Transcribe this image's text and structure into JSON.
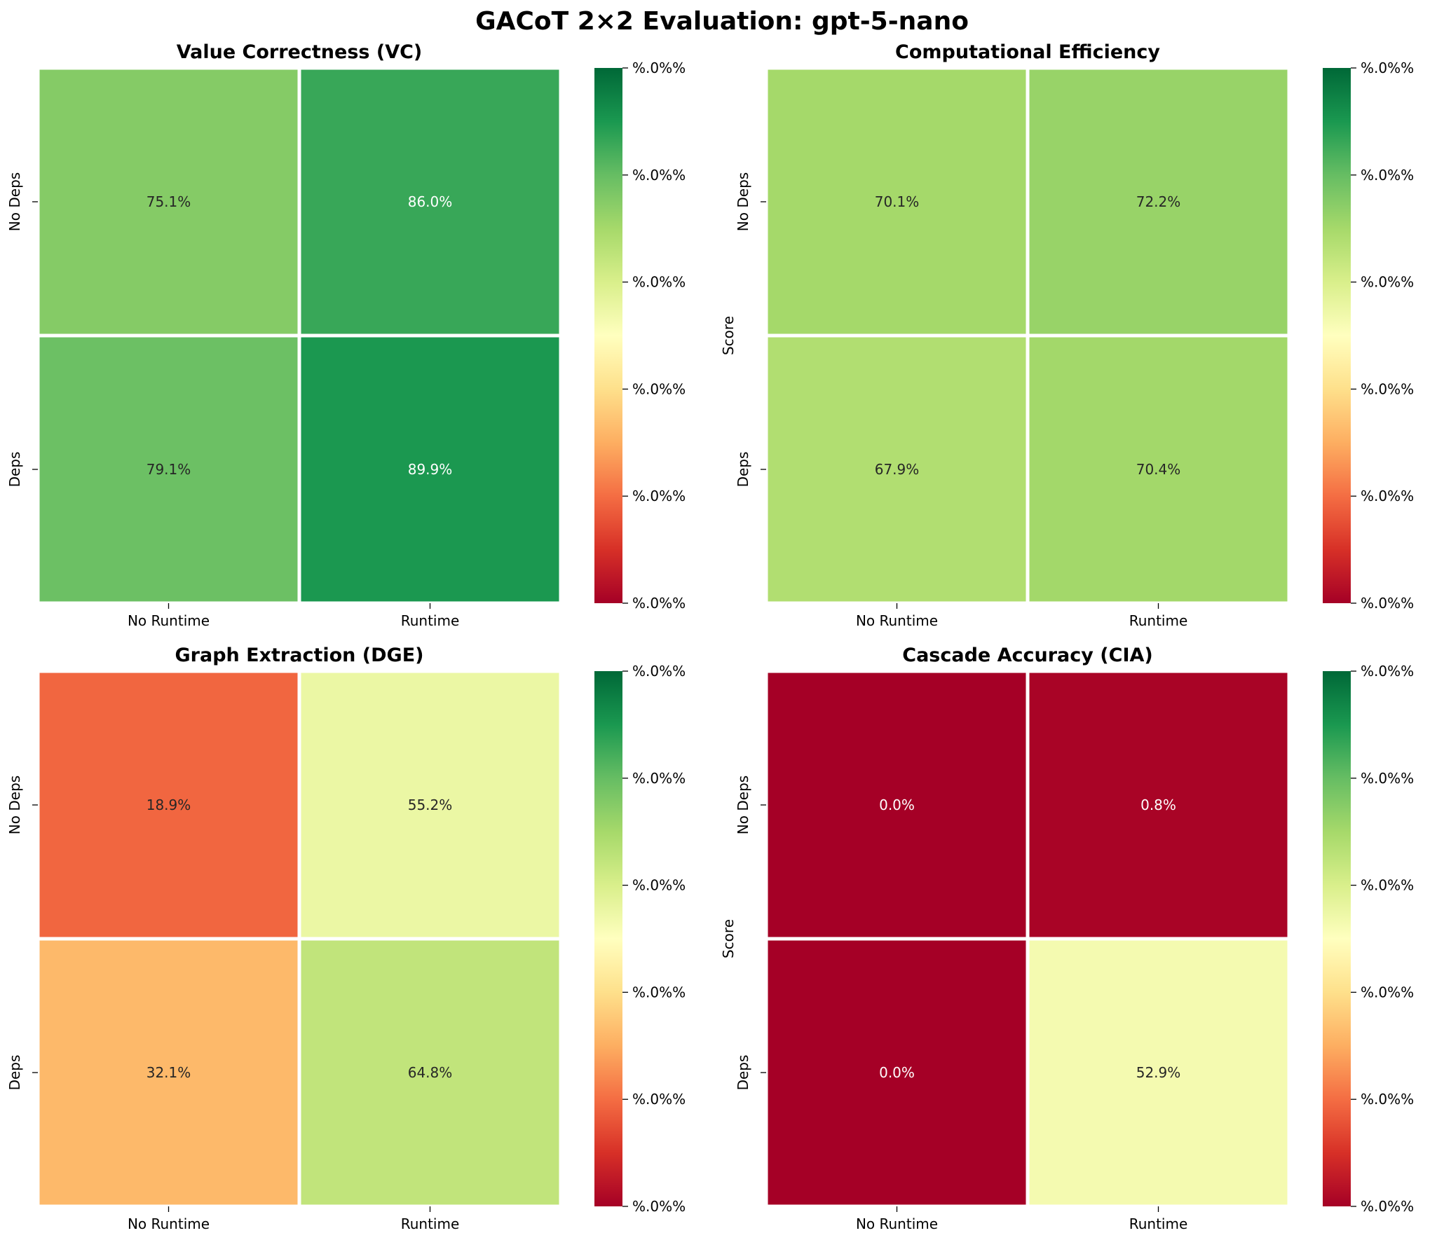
{
  "figure_title": "GACoT 2×2 Evaluation: gpt-5-nano",
  "chart_data": [
    {
      "type": "heatmap",
      "title": "Value Correctness (VC)",
      "x_categories": [
        "No Runtime",
        "Runtime"
      ],
      "y_categories": [
        "No Deps",
        "Deps"
      ],
      "values": [
        [
          75.1,
          86.0
        ],
        [
          79.1,
          89.9
        ]
      ],
      "labels": [
        [
          "75.1%",
          "86.0%"
        ],
        [
          "79.1%",
          "89.9%"
        ]
      ],
      "colorbar_label": "Score",
      "colorbar_ticks": [
        "%.0f%%",
        "%.0f%%",
        "%.0f%%",
        "%.0f%%",
        "%.0f%%",
        "%.0f%%"
      ],
      "colorbar_ticks_display": [
        "%.0%%",
        "%.0%%",
        "%.0%%",
        "%.0%%",
        "%.0%%",
        "%.0%%"
      ],
      "vmin": 0,
      "vmax": 100,
      "colormap": "RdYlGn"
    },
    {
      "type": "heatmap",
      "title": "Computational Efficiency",
      "x_categories": [
        "No Runtime",
        "Runtime"
      ],
      "y_categories": [
        "No Deps",
        "Deps"
      ],
      "values": [
        [
          70.1,
          72.2
        ],
        [
          67.9,
          70.4
        ]
      ],
      "labels": [
        [
          "70.1%",
          "72.2%"
        ],
        [
          "67.9%",
          "70.4%"
        ]
      ],
      "colorbar_label": "Score",
      "colorbar_ticks_display": [
        "%.0%%",
        "%.0%%",
        "%.0%%",
        "%.0%%",
        "%.0%%",
        "%.0%%"
      ],
      "vmin": 0,
      "vmax": 100,
      "colormap": "RdYlGn"
    },
    {
      "type": "heatmap",
      "title": "Graph Extraction (DGE)",
      "x_categories": [
        "No Runtime",
        "Runtime"
      ],
      "y_categories": [
        "No Deps",
        "Deps"
      ],
      "values": [
        [
          18.9,
          55.2
        ],
        [
          32.1,
          64.8
        ]
      ],
      "labels": [
        [
          "18.9%",
          "55.2%"
        ],
        [
          "32.1%",
          "64.8%"
        ]
      ],
      "colorbar_label": "Score",
      "colorbar_ticks_display": [
        "%.0%%",
        "%.0%%",
        "%.0%%",
        "%.0%%",
        "%.0%%",
        "%.0%%"
      ],
      "vmin": 0,
      "vmax": 100,
      "colormap": "RdYlGn"
    },
    {
      "type": "heatmap",
      "title": "Cascade Accuracy (CIA)",
      "x_categories": [
        "No Runtime",
        "Runtime"
      ],
      "y_categories": [
        "No Deps",
        "Deps"
      ],
      "values": [
        [
          0.0,
          0.8
        ],
        [
          0.0,
          52.9
        ]
      ],
      "labels": [
        [
          "0.0%",
          "0.8%"
        ],
        [
          "0.0%",
          "52.9%"
        ]
      ],
      "colorbar_label": "Score",
      "colorbar_ticks_display": [
        "%.0%%",
        "%.0%%",
        "%.0%%",
        "%.0%%",
        "%.0%%",
        "%.0%%"
      ],
      "vmin": 0,
      "vmax": 100,
      "colormap": "RdYlGn"
    }
  ]
}
